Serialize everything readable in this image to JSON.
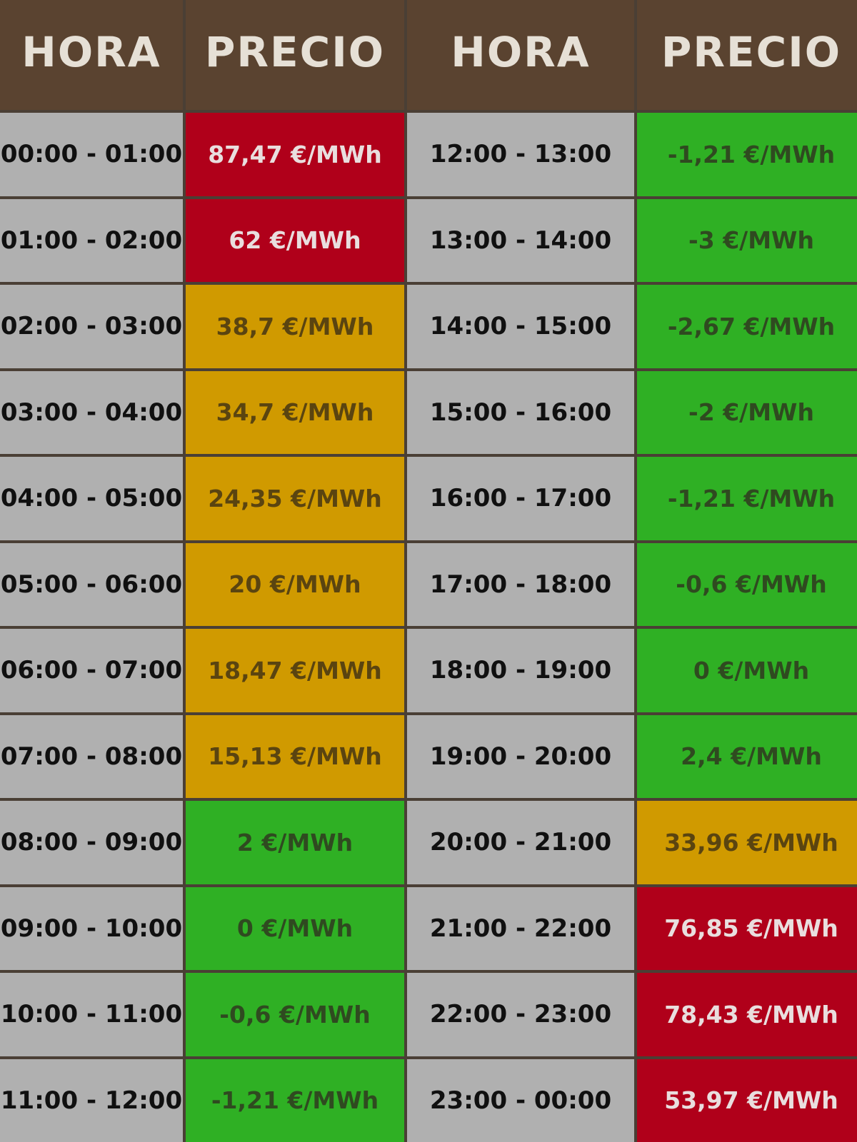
{
  "header": {
    "hora_left": "HORA",
    "precio_left": "PRECIO",
    "hora_right": "HORA",
    "precio_right": "PRECIO"
  },
  "colors": {
    "header": "#5a4330",
    "time_cell": "#b0b0b0",
    "high": "#b0001a",
    "medium": "#d09a00",
    "low": "#2fb024"
  },
  "rows": [
    {
      "left_time": "00:00 - 01:00",
      "left_price": "87,47 €/MWh",
      "left_level": "red",
      "right_time": "12:00 - 13:00",
      "right_price": "-1,21 €/MWh",
      "right_level": "green"
    },
    {
      "left_time": "01:00 - 02:00",
      "left_price": "62 €/MWh",
      "left_level": "red",
      "right_time": "13:00 - 14:00",
      "right_price": "-3 €/MWh",
      "right_level": "green"
    },
    {
      "left_time": "02:00 - 03:00",
      "left_price": "38,7 €/MWh",
      "left_level": "orange",
      "right_time": "14:00 - 15:00",
      "right_price": "-2,67 €/MWh",
      "right_level": "green"
    },
    {
      "left_time": "03:00 - 04:00",
      "left_price": "34,7 €/MWh",
      "left_level": "orange",
      "right_time": "15:00 - 16:00",
      "right_price": "-2 €/MWh",
      "right_level": "green"
    },
    {
      "left_time": "04:00 - 05:00",
      "left_price": "24,35 €/MWh",
      "left_level": "orange",
      "right_time": "16:00 - 17:00",
      "right_price": "-1,21 €/MWh",
      "right_level": "green"
    },
    {
      "left_time": "05:00 - 06:00",
      "left_price": "20 €/MWh",
      "left_level": "orange",
      "right_time": "17:00 - 18:00",
      "right_price": "-0,6 €/MWh",
      "right_level": "green"
    },
    {
      "left_time": "06:00 - 07:00",
      "left_price": "18,47 €/MWh",
      "left_level": "orange",
      "right_time": "18:00 - 19:00",
      "right_price": "0 €/MWh",
      "right_level": "green"
    },
    {
      "left_time": "07:00 - 08:00",
      "left_price": "15,13 €/MWh",
      "left_level": "orange",
      "right_time": "19:00 - 20:00",
      "right_price": "2,4 €/MWh",
      "right_level": "green"
    },
    {
      "left_time": "08:00 - 09:00",
      "left_price": "2 €/MWh",
      "left_level": "green",
      "right_time": "20:00 - 21:00",
      "right_price": "33,96 €/MWh",
      "right_level": "orange"
    },
    {
      "left_time": "09:00 - 10:00",
      "left_price": "0 €/MWh",
      "left_level": "green",
      "right_time": "21:00 - 22:00",
      "right_price": "76,85 €/MWh",
      "right_level": "red"
    },
    {
      "left_time": "10:00 - 11:00",
      "left_price": "-0,6 €/MWh",
      "left_level": "green",
      "right_time": "22:00 - 23:00",
      "right_price": "78,43 €/MWh",
      "right_level": "red"
    },
    {
      "left_time": "11:00 - 12:00",
      "left_price": "-1,21 €/MWh",
      "left_level": "green",
      "right_time": "23:00 - 00:00",
      "right_price": "53,97 €/MWh",
      "right_level": "red"
    }
  ]
}
